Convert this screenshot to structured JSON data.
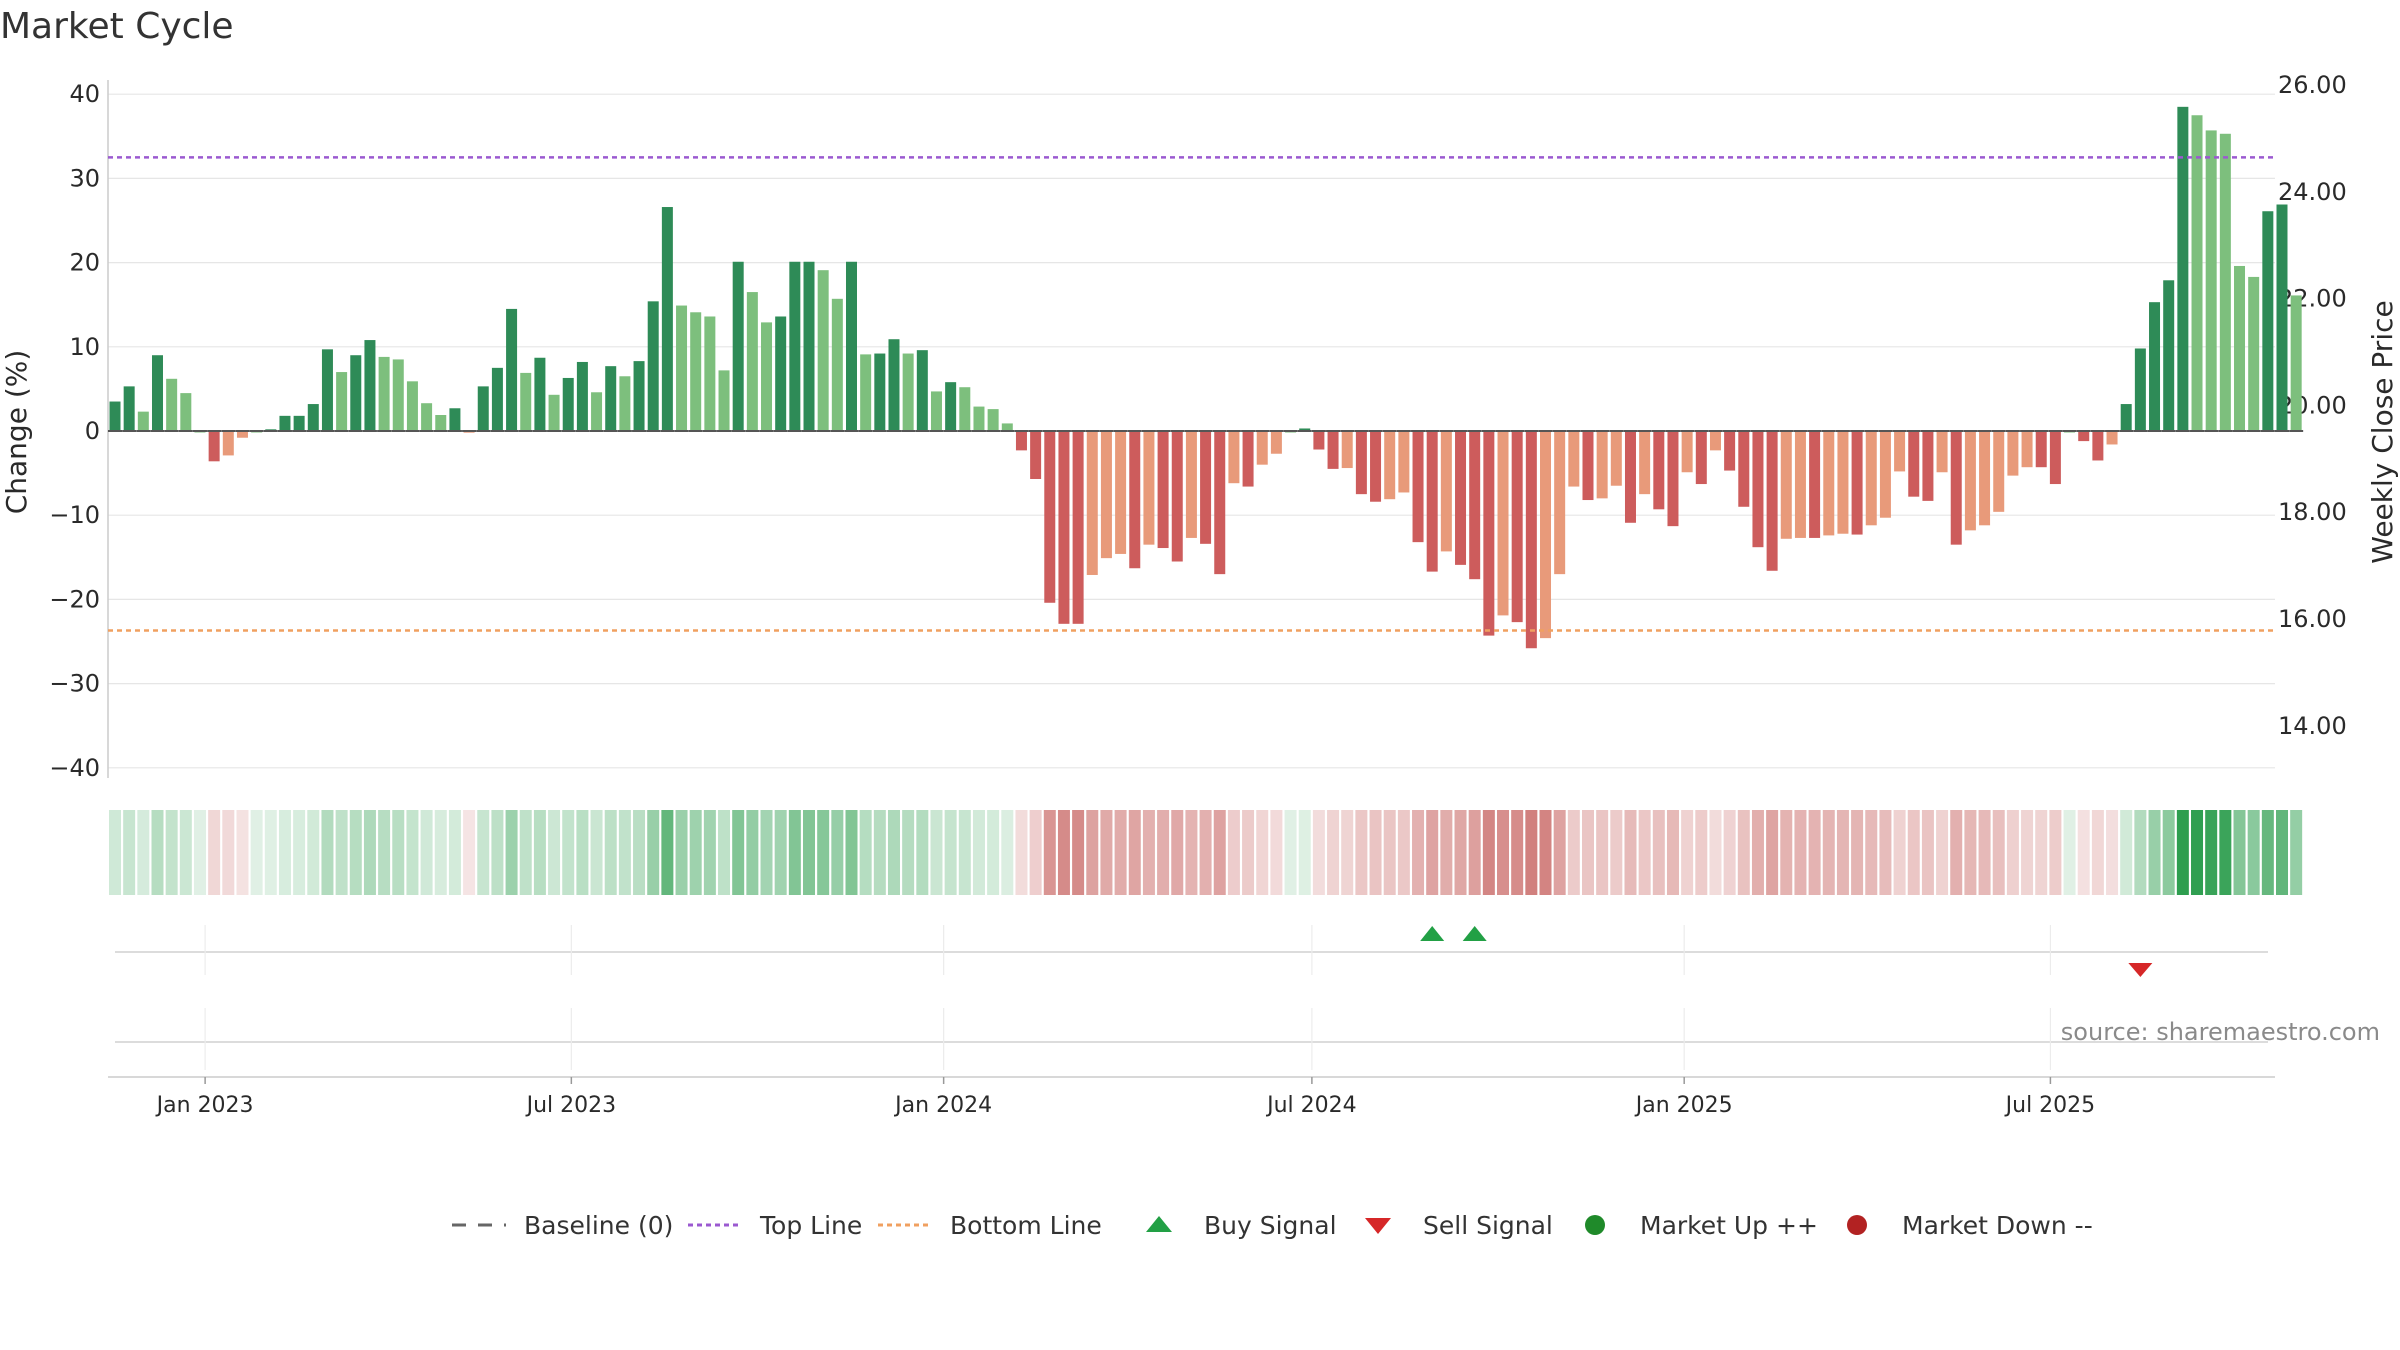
{
  "chart_data": {
    "type": "bar",
    "title": "Market Cycle",
    "source": "source: sharemaestro.com",
    "ylabel_left": "Change (%)",
    "ylabel_right": "Weekly Close Price",
    "ylim_left": [
      -40,
      40
    ],
    "yticks_left": [
      "40",
      "30",
      "20",
      "10",
      "0",
      "−10",
      "−20",
      "−30",
      "−40"
    ],
    "yticks_left_values": [
      40,
      30,
      20,
      10,
      0,
      -10,
      -20,
      -30,
      -40
    ],
    "yticks_right": [
      "26.00",
      "24.00",
      "22.00",
      "20.00",
      "18.00",
      "16.00",
      "14.00"
    ],
    "yticks_right_values": [
      26,
      24,
      22,
      20,
      18,
      16,
      14
    ],
    "ylim_right": [
      13,
      26.2
    ],
    "x_start": "2022-11-14",
    "x_end": "2025-10-20",
    "xticks": [
      {
        "label": "Jan 2023",
        "date": "2023-01-01"
      },
      {
        "label": "Jul 2023",
        "date": "2023-07-01"
      },
      {
        "label": "Jan 2024",
        "date": "2024-01-01"
      },
      {
        "label": "Jul 2024",
        "date": "2024-07-01"
      },
      {
        "label": "Jan 2025",
        "date": "2025-01-01"
      },
      {
        "label": "Jul 2025",
        "date": "2025-07-01"
      }
    ],
    "top_line": 32.5,
    "bottom_line": -23.7,
    "grid": true,
    "week_start": "2022-11-14",
    "week_step_days": 7,
    "values": [
      3.5,
      5.3,
      2.3,
      9.0,
      6.2,
      4.5,
      0,
      -3.6,
      -2.9,
      -0.8,
      0,
      0.2,
      1.8,
      1.8,
      3.2,
      9.7,
      7.0,
      9.0,
      10.8,
      8.8,
      8.5,
      5.9,
      3.3,
      1.9,
      2.7,
      -0.2,
      5.3,
      7.5,
      14.5,
      6.9,
      8.7,
      4.3,
      6.3,
      8.2,
      4.6,
      7.7,
      6.5,
      8.3,
      15.4,
      26.6,
      14.9,
      14.1,
      13.6,
      7.2,
      20.1,
      16.5,
      12.9,
      13.6,
      20.1,
      20.1,
      19.1,
      15.7,
      20.1,
      9.1,
      9.2,
      10.9,
      9.2,
      9.6,
      4.7,
      5.8,
      5.2,
      2.9,
      2.6,
      0.9,
      -2.3,
      -5.7,
      -20.4,
      -22.9,
      -22.9,
      -17.1,
      -15.1,
      -14.6,
      -16.3,
      -13.5,
      -13.9,
      -15.5,
      -12.7,
      -13.4,
      -17.0,
      -6.2,
      -6.6,
      -4.0,
      -2.7,
      0,
      0.3,
      -2.2,
      -4.5,
      -4.4,
      -7.5,
      -8.4,
      -8.1,
      -7.3,
      -13.2,
      -16.7,
      -14.3,
      -15.9,
      -17.6,
      -24.3,
      -21.9,
      -22.7,
      -25.8,
      -24.6,
      -17.0,
      -6.6,
      -8.2,
      -8.0,
      -6.5,
      -10.9,
      -7.5,
      -9.3,
      -11.3,
      -4.9,
      -6.3,
      -2.3,
      -4.7,
      -9.0,
      -13.8,
      -16.6,
      -12.8,
      -12.7,
      -12.7,
      -12.4,
      -12.2,
      -12.3,
      -11.2,
      -10.3,
      -4.8,
      -7.8,
      -8.3,
      -4.9,
      -13.5,
      -11.8,
      -11.2,
      -9.6,
      -5.3,
      -4.3,
      -4.3,
      -6.3,
      0,
      -1.2,
      -3.5,
      -1.6,
      3.2,
      9.8,
      15.3,
      17.9,
      38.5,
      37.5,
      35.7,
      35.3,
      19.6,
      18.3,
      26.1,
      26.9,
      16.1
    ],
    "signals": [
      {
        "type": "buy",
        "week_index": 93
      },
      {
        "type": "buy",
        "week_index": 96
      },
      {
        "type": "sell",
        "week_index": 143
      }
    ],
    "legend": [
      {
        "label": "Baseline (0)",
        "symbol": "dash-line",
        "color": "#666666"
      },
      {
        "label": "Top Line",
        "symbol": "dot-line",
        "color": "#9b59d0"
      },
      {
        "label": "Bottom Line",
        "symbol": "dot-line",
        "color": "#f0a060"
      },
      {
        "label": "Buy Signal",
        "symbol": "triangle-up",
        "color": "#22a045"
      },
      {
        "label": "Sell Signal",
        "symbol": "triangle-down",
        "color": "#d62728"
      },
      {
        "label": "Market Up ++",
        "symbol": "circle",
        "color": "#1f8a2a"
      },
      {
        "label": "Market Down --",
        "symbol": "circle",
        "color": "#b22222"
      }
    ],
    "colors": {
      "pos_strong": "#2e8b57",
      "pos_light": "#7dbf7d",
      "neg_strong": "#cd5c5c",
      "neg_light": "#e89a7a",
      "grid": "#e6e6e6",
      "axis": "#cccccc"
    }
  }
}
